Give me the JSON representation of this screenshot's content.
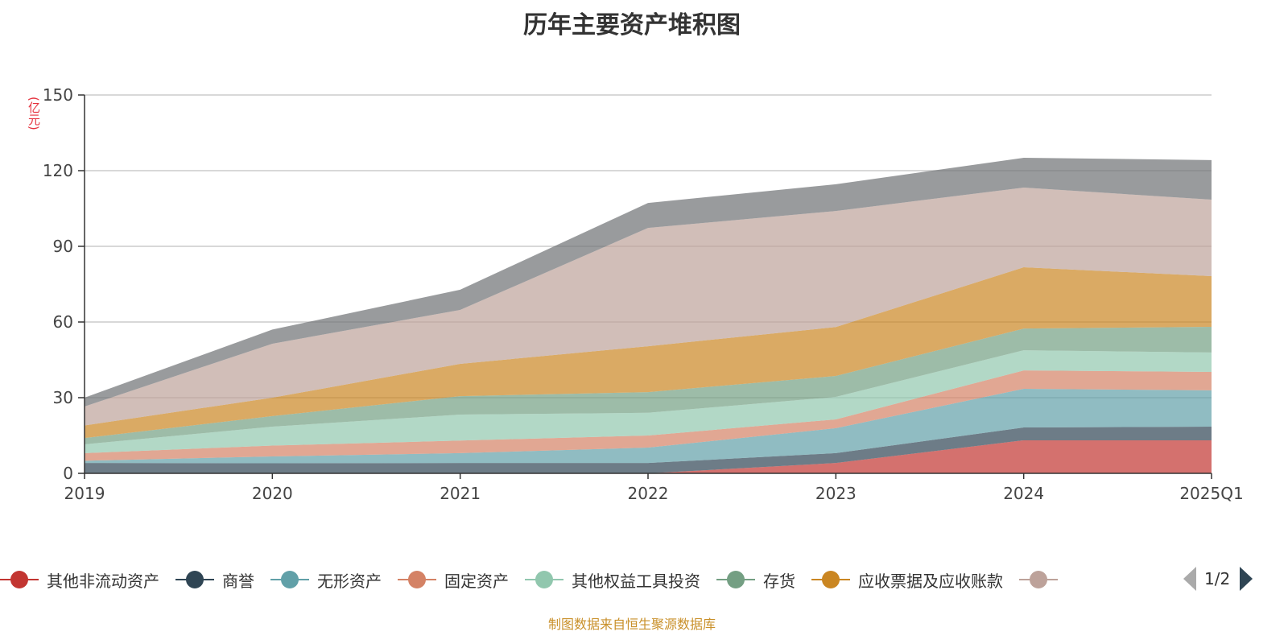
{
  "chart_data": {
    "type": "area",
    "stacked": true,
    "title": "历年主要资产堆积图",
    "ylabel": "(亿元)",
    "xlabel": "",
    "ylim": [
      0,
      150
    ],
    "yticks": [
      "0",
      "30",
      "60",
      "90",
      "120",
      "150"
    ],
    "categories": [
      "2019",
      "2020",
      "2021",
      "2022",
      "2023",
      "2024",
      "2025Q1"
    ],
    "grid": true,
    "legend_position": "bottom",
    "series": [
      {
        "name": "其他非流动资产",
        "color": "#c23531",
        "values": [
          0,
          0,
          0,
          0,
          4.1,
          13.1,
          13.1
        ]
      },
      {
        "name": "商誉",
        "color": "#2f4554",
        "values": [
          4.1,
          4.0,
          4.1,
          4.1,
          3.9,
          5.1,
          5.4
        ]
      },
      {
        "name": "无形资产",
        "color": "#61a0a8",
        "values": [
          0.9,
          2.7,
          3.9,
          6.1,
          9.9,
          15.3,
          14.4
        ]
      },
      {
        "name": "固定资产",
        "color": "#d48265",
        "values": [
          3.0,
          4.3,
          5.0,
          4.8,
          3.5,
          7.3,
          7.3
        ]
      },
      {
        "name": "其他权益工具投资",
        "color": "#91c7ae",
        "values": [
          3.5,
          7.5,
          10.3,
          9.0,
          8.9,
          8.0,
          7.7
        ]
      },
      {
        "name": "存货",
        "color": "#749f83",
        "values": [
          2.5,
          4.2,
          7.3,
          8.2,
          8.3,
          8.6,
          10.2
        ]
      },
      {
        "name": "应收票据及应收账款",
        "color": "#ca8622",
        "values": [
          5.0,
          7.3,
          12.8,
          18.2,
          19.4,
          24.3,
          20.1
        ]
      },
      {
        "name": "",
        "color": "#bda29a",
        "values": [
          7.5,
          21.4,
          21.4,
          46.9,
          46.0,
          31.6,
          30.3
        ]
      },
      {
        "name": "",
        "color": "#6e7074",
        "values": [
          3.5,
          5.6,
          8.0,
          9.9,
          10.6,
          11.8,
          15.7
        ]
      }
    ]
  },
  "legend": {
    "page": "1/2"
  },
  "source": "制图数据来自恒生聚源数据库"
}
